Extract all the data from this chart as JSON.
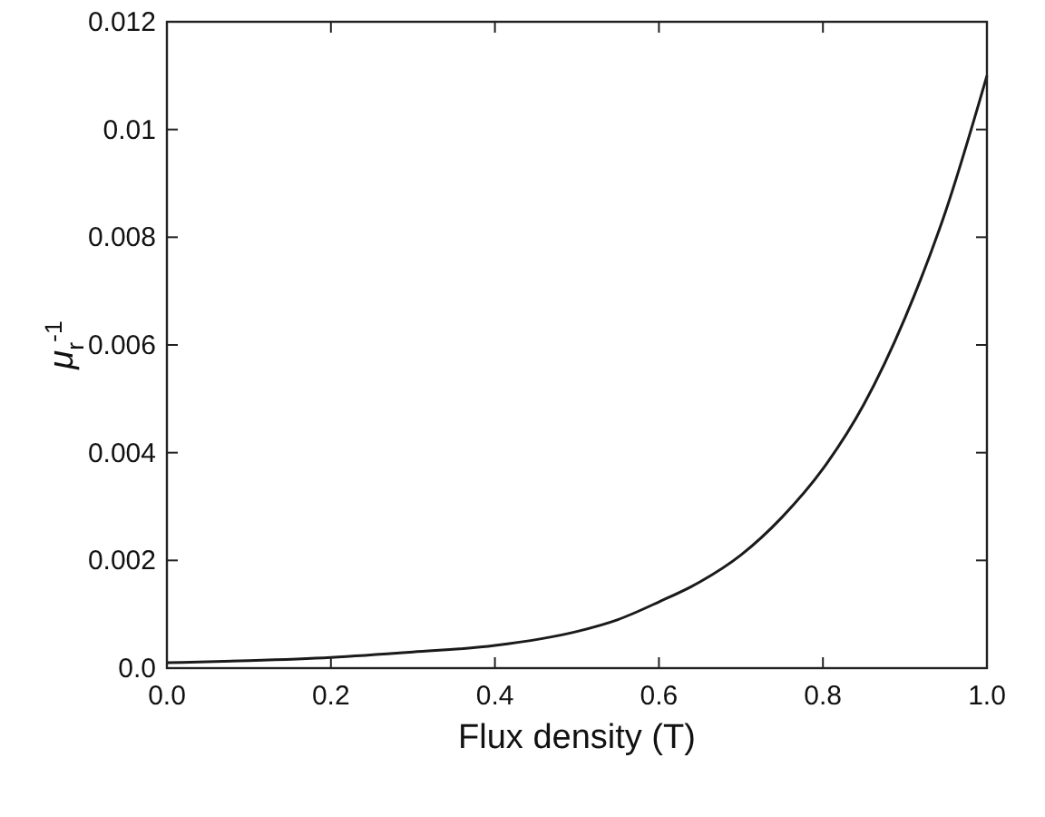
{
  "chart_data": {
    "type": "line",
    "xlabel": "Flux density (T)",
    "ylabel": "μ$_{r}$$^{-1}$",
    "xlim": [
      0,
      1
    ],
    "ylim": [
      0,
      0.012
    ],
    "xticks": [
      {
        "value": 0,
        "label": "0.0"
      },
      {
        "value": 0.2,
        "label": "0.2"
      },
      {
        "value": 0.4,
        "label": "0.4"
      },
      {
        "value": 0.6,
        "label": "0.6"
      },
      {
        "value": 0.8,
        "label": "0.8"
      },
      {
        "value": 1,
        "label": "1.0"
      }
    ],
    "yticks": [
      {
        "value": 0,
        "label": "0.0"
      },
      0.002,
      0.004,
      0.006,
      0.008,
      {
        "value": 0.01,
        "label": "0.01"
      },
      0.012
    ],
    "grid": false,
    "marker": "none",
    "line_style": "solid",
    "series": [
      {
        "color": "#1a1a1a",
        "x": [
          0,
          0.1,
          0.2,
          0.3,
          0.4,
          0.5,
          0.55,
          0.6,
          0.65,
          0.7,
          0.75,
          0.8,
          0.85,
          0.9,
          0.95,
          1.0
        ],
        "values": [
          0.0001,
          0.00014,
          0.0002,
          0.0003,
          0.00042,
          0.00068,
          0.0009,
          0.00123,
          0.0016,
          0.0021,
          0.0028,
          0.0037,
          0.0049,
          0.0065,
          0.0085,
          0.011
        ]
      }
    ]
  }
}
